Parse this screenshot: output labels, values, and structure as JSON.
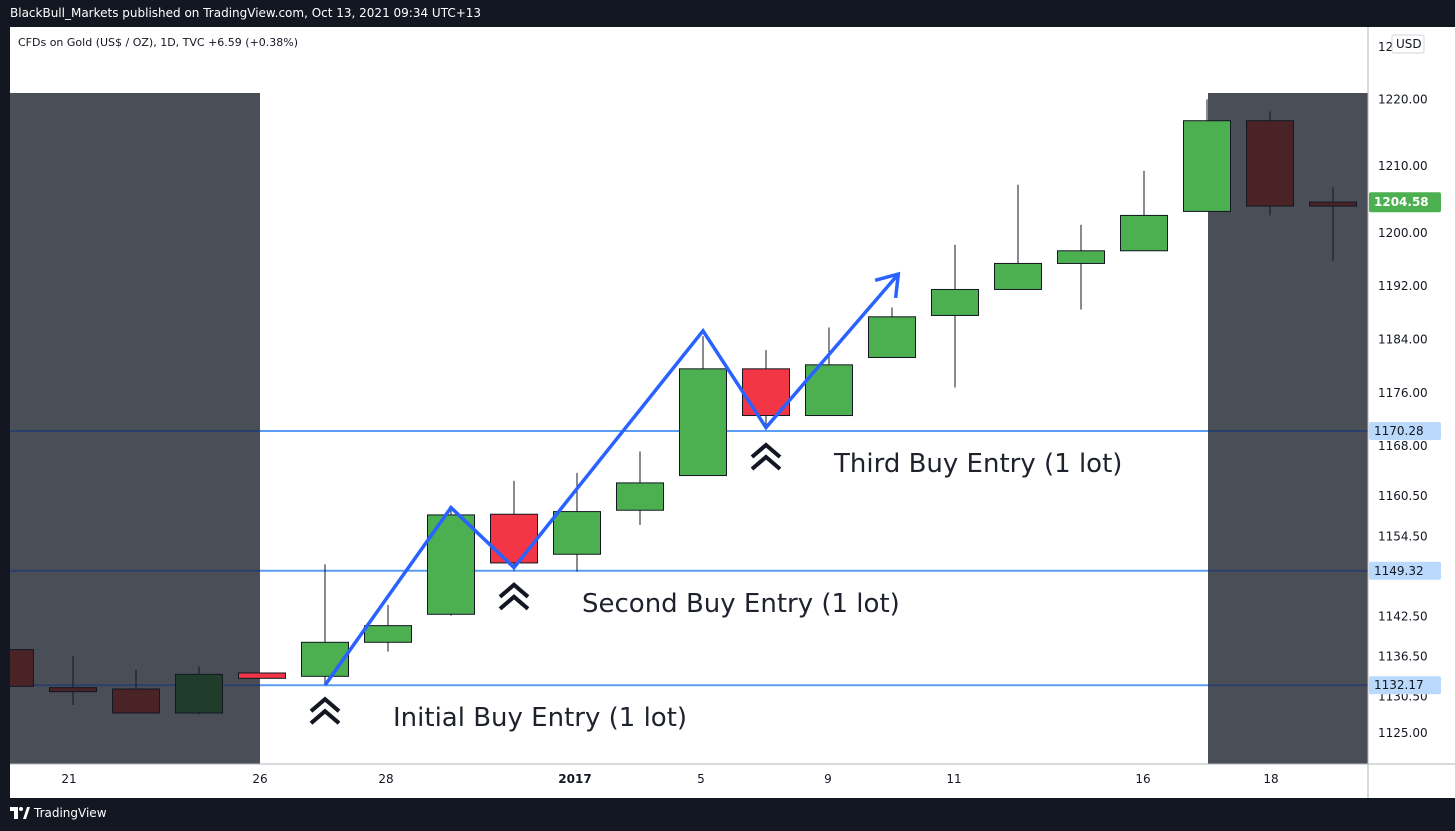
{
  "header": {
    "publisher_line": "BlackBull_Markets published on TradingView.com, Oct 13, 2021 09:34 UTC+13",
    "symbol_line": "CFDs on Gold (US$ / OZ), 1D, TVC  +6.59 (+0.38%)"
  },
  "footer": {
    "brand": "TradingView"
  },
  "currency_label": "USD",
  "colors": {
    "up": "#4caf50",
    "down": "#f23645",
    "shade": "#4a4e57",
    "level_line": "#5b9cf6",
    "zigzag": "#2962ff",
    "last_price_badge": "#4caf50"
  },
  "chart_data": {
    "type": "candlestick",
    "y_axis": {
      "ticks": [
        "1125.00",
        "1130.50",
        "1136.50",
        "1142.50",
        "1154.50",
        "1160.50",
        "1168.00",
        "1176.00",
        "1184.00",
        "1192.00",
        "1200.00",
        "1210.00",
        "1220.00"
      ],
      "clipped_top_label": "12"
    },
    "x_axis": {
      "labels": [
        "21",
        "26",
        "28",
        "2017",
        "5",
        "9",
        "11",
        "16",
        "18"
      ]
    },
    "candles": [
      {
        "o": 1137.5,
        "h": 1137.5,
        "l": 1132,
        "c": 1132,
        "shade": true
      },
      {
        "o": 1131.8,
        "h": 1136.5,
        "l": 1129.2,
        "c": 1131.2,
        "shade": true
      },
      {
        "o": 1131.6,
        "h": 1134.5,
        "l": 1128,
        "c": 1128,
        "shade": true
      },
      {
        "o": 1128,
        "h": 1135,
        "l": 1127.8,
        "c": 1133.8,
        "shade": true
      },
      {
        "o": 1134,
        "h": 1134,
        "l": 1133.2,
        "c": 1133.2,
        "shade": false
      },
      {
        "o": 1133.5,
        "h": 1150.3,
        "l": 1132.2,
        "c": 1138.6,
        "shade": false
      },
      {
        "o": 1138.6,
        "h": 1144.2,
        "l": 1137.2,
        "c": 1141.1,
        "shade": false
      },
      {
        "o": 1142.8,
        "h": 1158.4,
        "l": 1142.6,
        "c": 1157.7,
        "shade": false
      },
      {
        "o": 1157.8,
        "h": 1162.8,
        "l": 1149.3,
        "c": 1150.5,
        "shade": false
      },
      {
        "o": 1151.8,
        "h": 1164,
        "l": 1149.2,
        "c": 1158.2,
        "shade": false
      },
      {
        "o": 1158.4,
        "h": 1167.2,
        "l": 1156.2,
        "c": 1162.5,
        "shade": false
      },
      {
        "o": 1163.6,
        "h": 1184.5,
        "l": 1163.6,
        "c": 1179.6,
        "shade": false
      },
      {
        "o": 1179.6,
        "h": 1182.4,
        "l": 1170.8,
        "c": 1172.6,
        "shade": false
      },
      {
        "o": 1172.6,
        "h": 1185.8,
        "l": 1172.6,
        "c": 1180.2,
        "shade": false
      },
      {
        "o": 1181.3,
        "h": 1188.8,
        "l": 1181.3,
        "c": 1187.4,
        "shade": false
      },
      {
        "o": 1187.6,
        "h": 1198.2,
        "l": 1176.8,
        "c": 1191.5,
        "shade": false
      },
      {
        "o": 1191.5,
        "h": 1207.2,
        "l": 1191.5,
        "c": 1195.4,
        "shade": false
      },
      {
        "o": 1195.4,
        "h": 1201.2,
        "l": 1188.5,
        "c": 1197.3,
        "shade": false
      },
      {
        "o": 1197.3,
        "h": 1209.3,
        "l": 1197.3,
        "c": 1202.6,
        "shade": false
      },
      {
        "o": 1203.2,
        "h": 1220,
        "l": 1203.2,
        "c": 1216.8,
        "shade": false
      },
      {
        "o": 1216.8,
        "h": 1218.2,
        "l": 1202.6,
        "c": 1204,
        "shade": true
      },
      {
        "o": 1204.6,
        "h": 1206.8,
        "l": 1195.8,
        "c": 1204,
        "shade": true
      }
    ],
    "levels": [
      {
        "price": 1170.28,
        "label": "1170.28"
      },
      {
        "price": 1149.32,
        "label": "1149.32"
      },
      {
        "price": 1132.17,
        "label": "1132.17"
      }
    ],
    "last_price": {
      "price": 1204.58,
      "label": "1204.58"
    },
    "annotations": [
      {
        "text": "Initial Buy Entry (1 lot)",
        "candle": 5,
        "price": 1132.17
      },
      {
        "text": "Second Buy Entry (1 lot)",
        "candle": 8,
        "price": 1149.32
      },
      {
        "text": "Third Buy Entry (1 lot)",
        "candle": 12,
        "price": 1170.28
      }
    ],
    "zigzag": [
      {
        "candle": 5,
        "price": 1132.17
      },
      {
        "candle": 7,
        "price": 1158.8
      },
      {
        "candle": 8,
        "price": 1149.8
      },
      {
        "candle": 11,
        "price": 1185.3
      },
      {
        "candle": 12,
        "price": 1170.8
      },
      {
        "candle": 14.1,
        "price": 1193.8
      }
    ]
  }
}
